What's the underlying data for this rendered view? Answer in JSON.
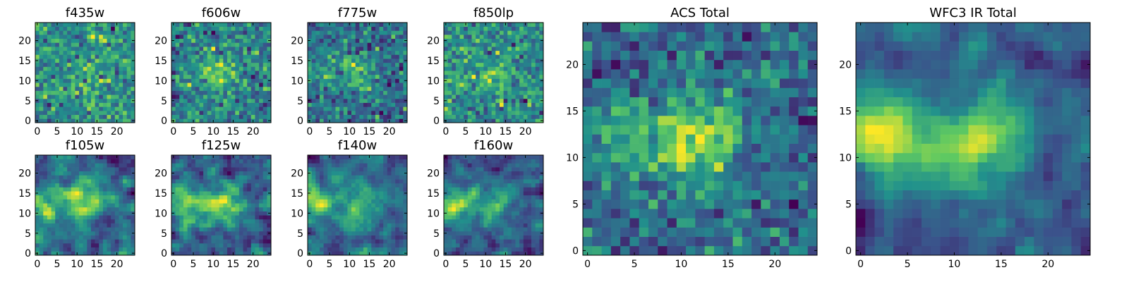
{
  "figure": {
    "colormap": "viridis",
    "colormap_stops": [
      "#440154",
      "#3b528b",
      "#21918c",
      "#5ec962",
      "#fde725"
    ]
  },
  "chart_data": [
    {
      "id": "f435w",
      "type": "heatmap",
      "title": "f435w",
      "grid_size": 25,
      "seed": 11,
      "blobs": [
        [
          12,
          12,
          3.5,
          0.25
        ]
      ],
      "noise": 1.0,
      "smooth": 0,
      "xticks": [
        0,
        5,
        10,
        15,
        20
      ],
      "yticks": [
        0,
        5,
        10,
        15,
        20
      ],
      "xlim": [
        -0.5,
        24.5
      ],
      "ylim": [
        -0.5,
        24.5
      ],
      "grid": false
    },
    {
      "id": "f606w",
      "type": "heatmap",
      "title": "f606w",
      "grid_size": 25,
      "seed": 23,
      "blobs": [
        [
          11,
          12,
          3.5,
          0.7
        ]
      ],
      "noise": 0.9,
      "smooth": 0,
      "xticks": [
        0,
        5,
        10,
        15,
        20
      ],
      "yticks": [
        0,
        5,
        10,
        15,
        20
      ],
      "xlim": [
        -0.5,
        24.5
      ],
      "ylim": [
        -0.5,
        24.5
      ],
      "grid": false
    },
    {
      "id": "f775w",
      "type": "heatmap",
      "title": "f775w",
      "grid_size": 25,
      "seed": 37,
      "blobs": [
        [
          12,
          12,
          3.2,
          0.8
        ],
        [
          4,
          12,
          3,
          0.5
        ]
      ],
      "noise": 0.9,
      "smooth": 0,
      "xticks": [
        0,
        5,
        10,
        15,
        20
      ],
      "yticks": [
        0,
        5,
        10,
        15,
        20
      ],
      "xlim": [
        -0.5,
        24.5
      ],
      "ylim": [
        -0.5,
        24.5
      ],
      "grid": false
    },
    {
      "id": "f850lp",
      "type": "heatmap",
      "title": "f850lp",
      "grid_size": 25,
      "seed": 41,
      "blobs": [
        [
          12,
          11,
          3.2,
          0.6
        ],
        [
          3,
          10,
          2.5,
          0.4
        ]
      ],
      "noise": 0.9,
      "smooth": 0,
      "xticks": [
        0,
        5,
        10,
        15,
        20
      ],
      "yticks": [
        0,
        5,
        10,
        15,
        20
      ],
      "xlim": [
        -0.5,
        24.5
      ],
      "ylim": [
        -0.5,
        24.5
      ],
      "grid": false
    },
    {
      "id": "f105w",
      "type": "heatmap",
      "title": "f105w",
      "grid_size": 25,
      "seed": 53,
      "blobs": [
        [
          2,
          12,
          3,
          0.8
        ],
        [
          12,
          12,
          3.5,
          0.9
        ]
      ],
      "noise": 0.7,
      "smooth": 1,
      "xticks": [
        0,
        5,
        10,
        15,
        20
      ],
      "yticks": [
        0,
        5,
        10,
        15,
        20
      ],
      "xlim": [
        -0.5,
        24.5
      ],
      "ylim": [
        -0.5,
        24.5
      ],
      "grid": false
    },
    {
      "id": "f125w",
      "type": "heatmap",
      "title": "f125w",
      "grid_size": 25,
      "seed": 67,
      "blobs": [
        [
          3,
          12,
          3,
          0.9
        ],
        [
          12,
          12,
          3.5,
          0.9
        ]
      ],
      "noise": 0.7,
      "smooth": 1,
      "xticks": [
        0,
        5,
        10,
        15,
        20
      ],
      "yticks": [
        0,
        5,
        10,
        15,
        20
      ],
      "xlim": [
        -0.5,
        24.5
      ],
      "ylim": [
        -0.5,
        24.5
      ],
      "grid": false
    },
    {
      "id": "f140w",
      "type": "heatmap",
      "title": "f140w",
      "grid_size": 25,
      "seed": 79,
      "blobs": [
        [
          2,
          13,
          3,
          1.0
        ],
        [
          12,
          12,
          3.5,
          0.8
        ]
      ],
      "noise": 0.7,
      "smooth": 1,
      "xticks": [
        0,
        5,
        10,
        15,
        20
      ],
      "yticks": [
        0,
        5,
        10,
        15,
        20
      ],
      "xlim": [
        -0.5,
        24.5
      ],
      "ylim": [
        -0.5,
        24.5
      ],
      "grid": false
    },
    {
      "id": "f160w",
      "type": "heatmap",
      "title": "f160w",
      "grid_size": 25,
      "seed": 97,
      "blobs": [
        [
          2,
          12,
          3,
          1.1
        ],
        [
          12,
          12,
          3.5,
          0.8
        ]
      ],
      "noise": 0.7,
      "smooth": 1,
      "xticks": [
        0,
        5,
        10,
        15,
        20
      ],
      "yticks": [
        0,
        5,
        10,
        15,
        20
      ],
      "xlim": [
        -0.5,
        24.5
      ],
      "ylim": [
        -0.5,
        24.5
      ],
      "grid": false
    },
    {
      "id": "acs-total",
      "type": "heatmap",
      "title": "ACS Total",
      "grid_size": 25,
      "seed": 131,
      "blobs": [
        [
          12,
          12,
          3,
          1.1
        ],
        [
          4,
          12,
          3,
          0.5
        ]
      ],
      "noise": 0.55,
      "smooth": 0,
      "xticks": [
        0,
        5,
        10,
        15,
        20
      ],
      "yticks": [
        0,
        5,
        10,
        15,
        20
      ],
      "xlim": [
        -0.5,
        24.5
      ],
      "ylim": [
        -0.5,
        24.5
      ],
      "grid": false
    },
    {
      "id": "wfc3-ir-total",
      "type": "heatmap",
      "title": "WFC3 IR Total",
      "grid_size": 25,
      "seed": 149,
      "blobs": [
        [
          2,
          12,
          3,
          1.3
        ],
        [
          12,
          12,
          4,
          1.0
        ]
      ],
      "noise": 0.5,
      "smooth": 1,
      "xticks": [
        0,
        5,
        10,
        15,
        20
      ],
      "yticks": [
        0,
        5,
        10,
        15,
        20
      ],
      "xlim": [
        -0.5,
        24.5
      ],
      "ylim": [
        -0.5,
        24.5
      ],
      "grid": false
    }
  ]
}
